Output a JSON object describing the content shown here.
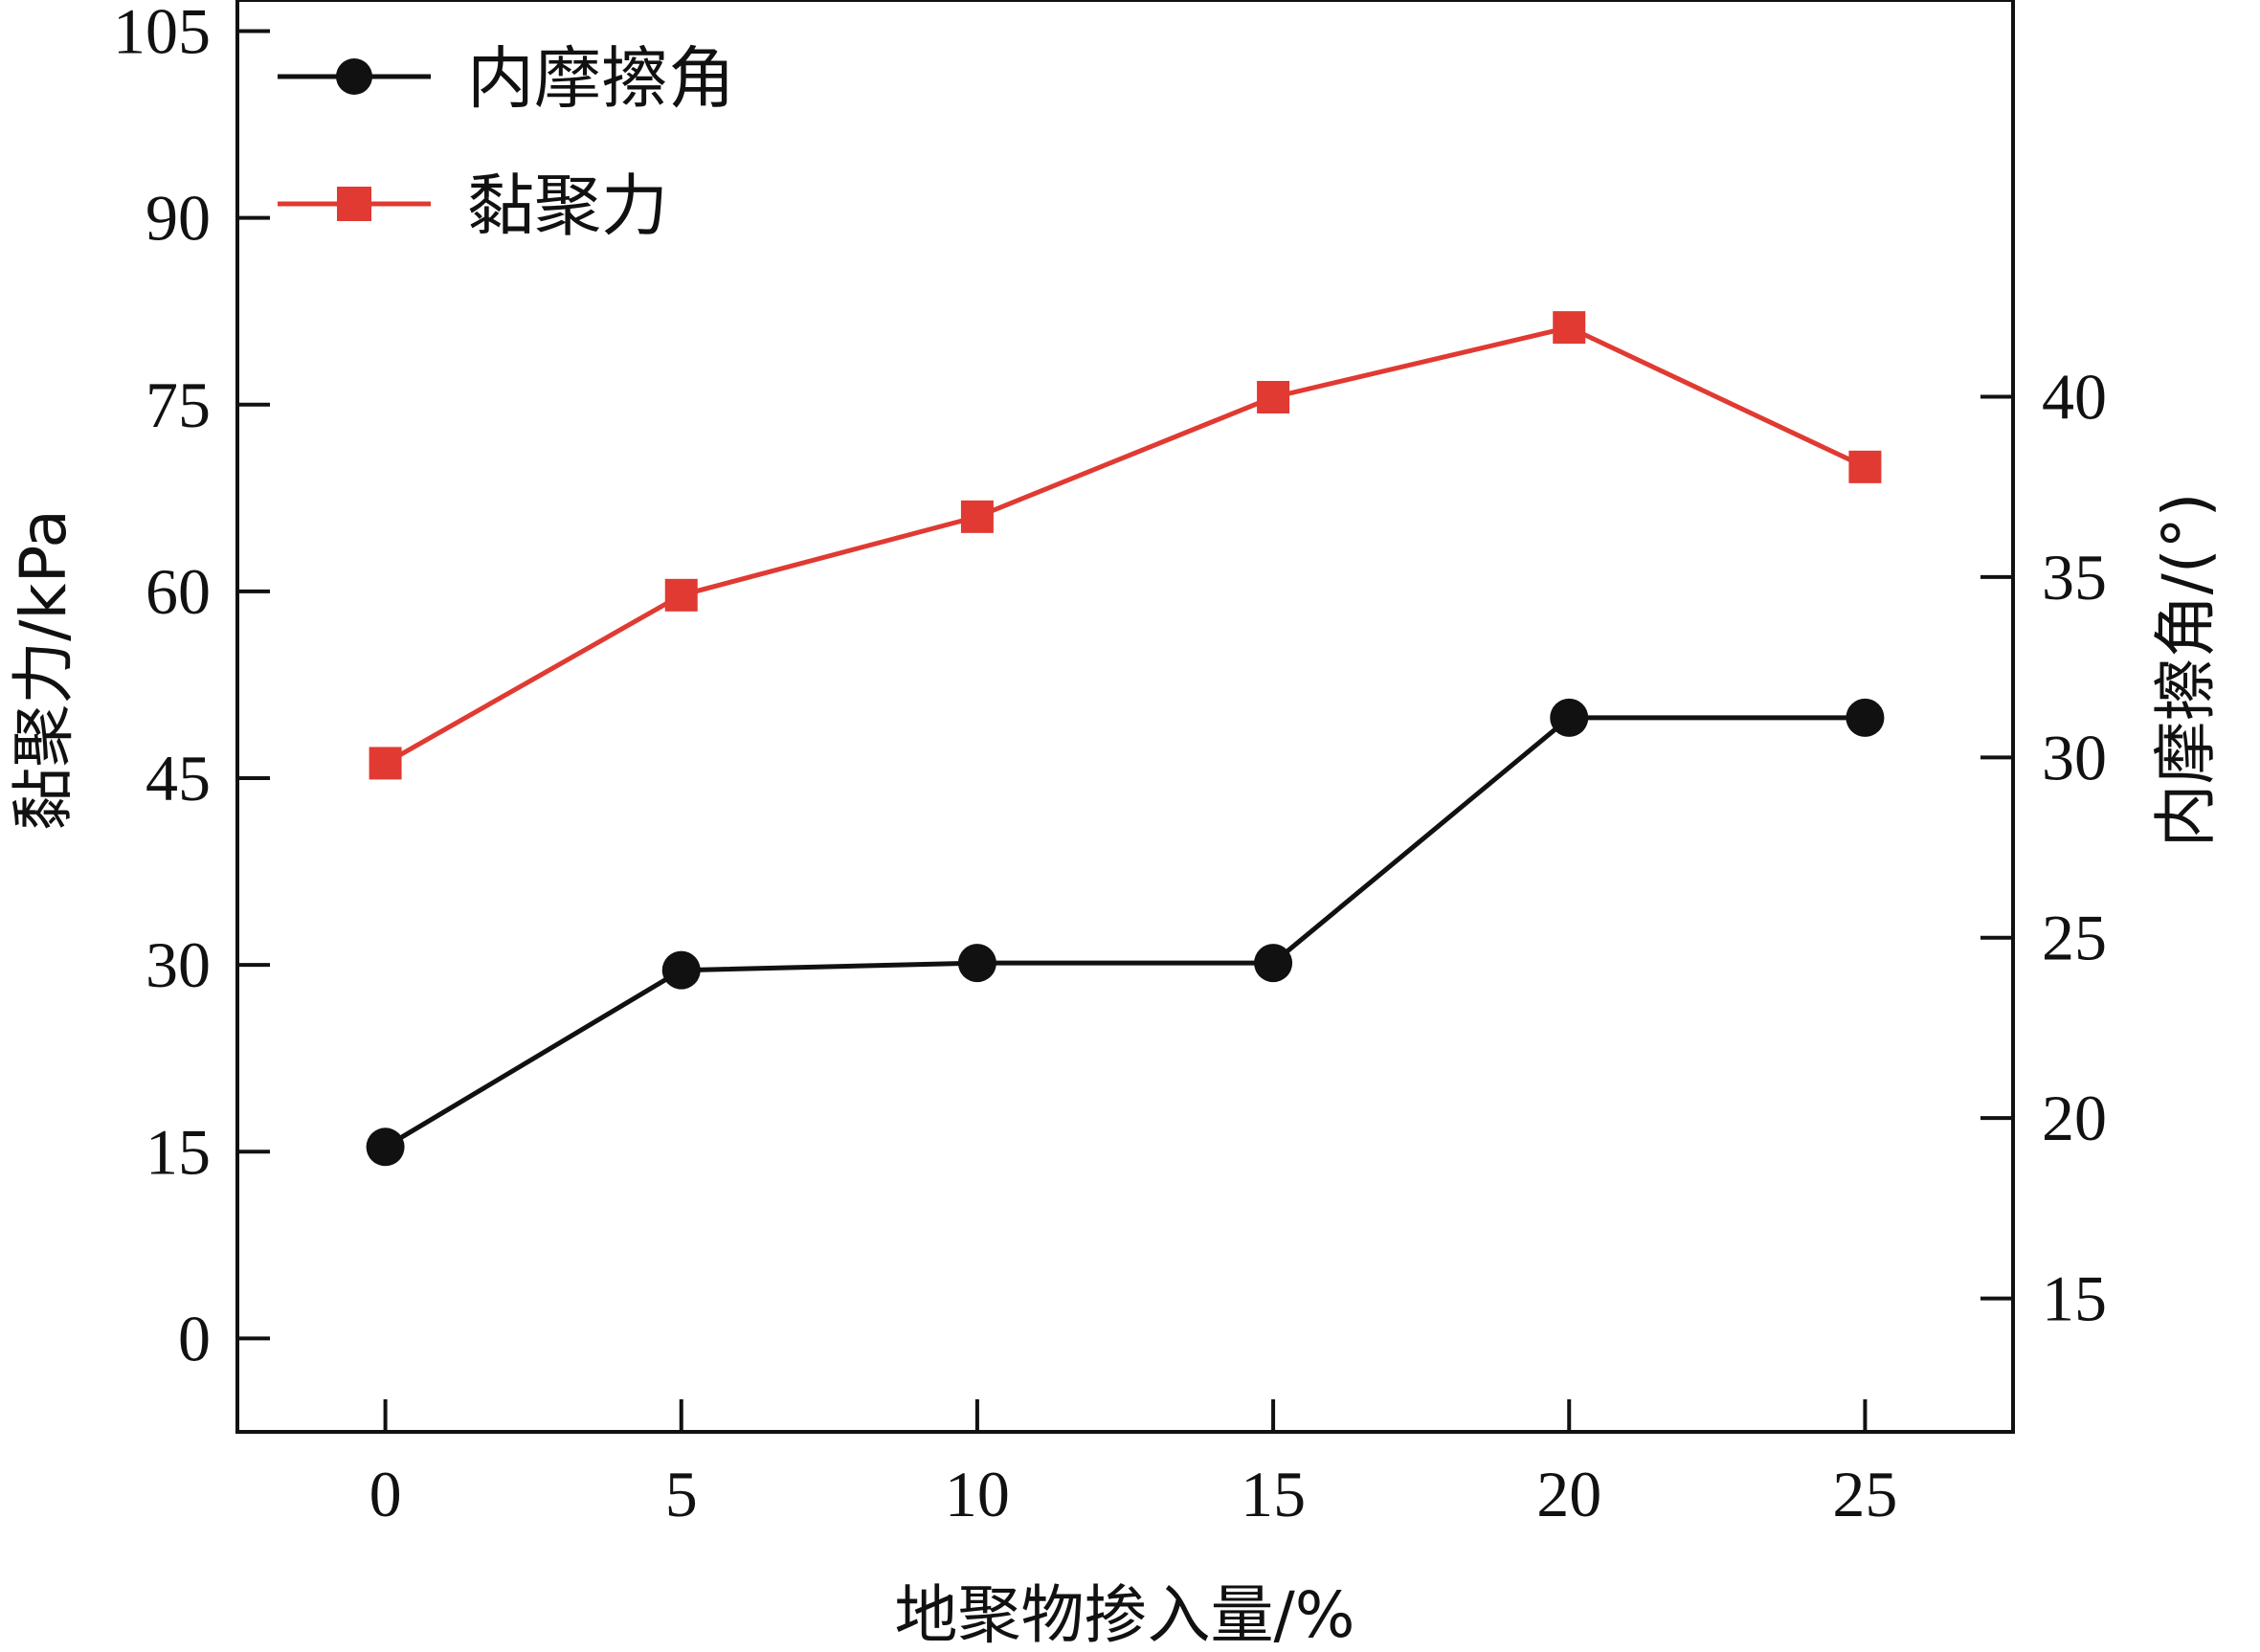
{
  "chart_data": {
    "type": "line",
    "xlabel": "地聚物掺入量/%",
    "ylabel_left": "黏聚力/kPa",
    "ylabel_right": "内摩擦角/(°)",
    "x": [
      0,
      5,
      10,
      15,
      20,
      25
    ],
    "xlim": [
      -2.5,
      27.5
    ],
    "x_ticks": [
      0,
      5,
      10,
      15,
      20,
      25
    ],
    "ylim_left": [
      -7.5,
      107.5
    ],
    "y_ticks_left": [
      0,
      15,
      30,
      45,
      60,
      75,
      90,
      105
    ],
    "ylim_right": [
      11.3,
      51.0
    ],
    "y_ticks_right": [
      15,
      20,
      25,
      30,
      35,
      40
    ],
    "grid": false,
    "legend_position": "top-left",
    "series": [
      {
        "name": "内摩擦角",
        "axis": "right",
        "marker": "circle",
        "color": "#111111",
        "values": [
          19.2,
          24.1,
          24.3,
          24.3,
          31.1,
          31.1
        ]
      },
      {
        "name": "黏聚力",
        "axis": "left",
        "marker": "square",
        "color": "#e03a32",
        "values": [
          46.2,
          59.7,
          66.0,
          75.6,
          81.2,
          70.0
        ]
      }
    ]
  }
}
